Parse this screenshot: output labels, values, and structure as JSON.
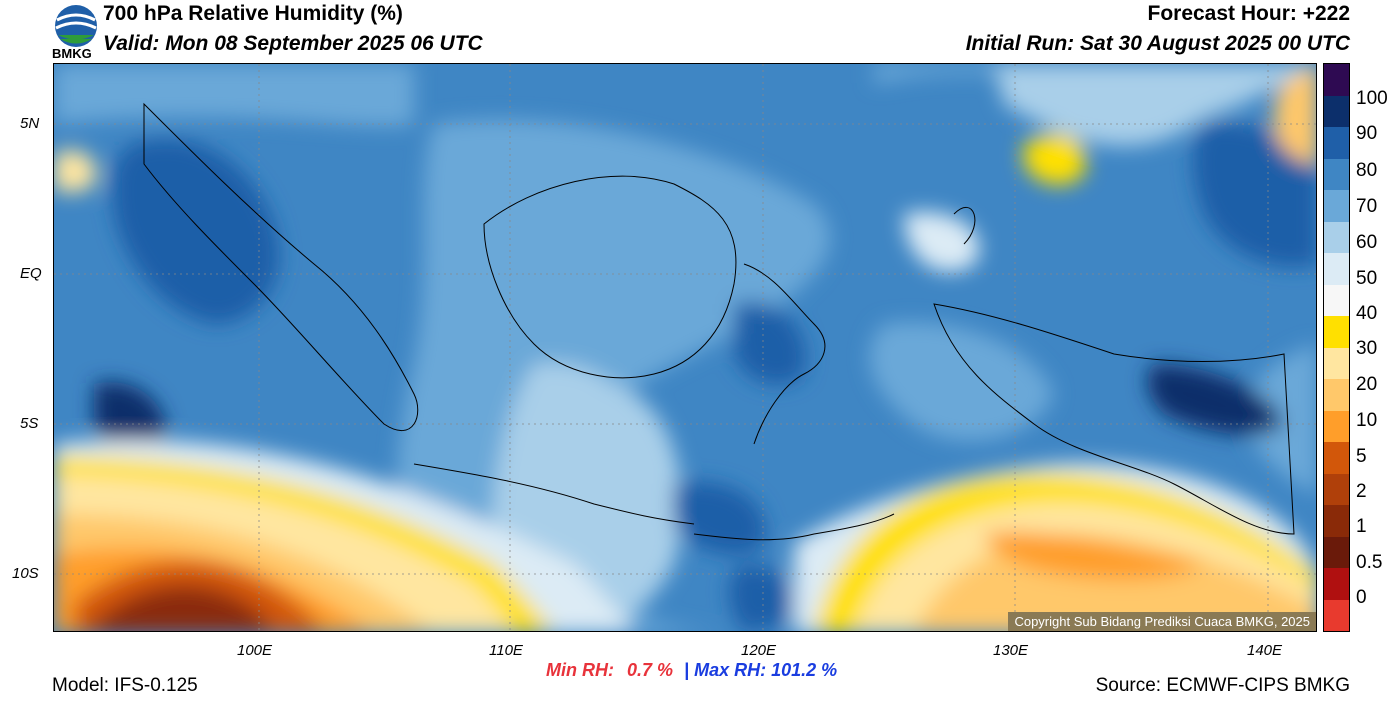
{
  "header": {
    "logo_text": "BMKG",
    "title": "700 hPa Relative Humidity (%)",
    "valid": "Valid: Mon 08 September 2025 06 UTC",
    "forecast_hour": "Forecast Hour: +222",
    "initial_run": "Initial Run: Sat 30 August 2025 00 UTC"
  },
  "axes": {
    "lat_ticks": [
      "5N",
      "EQ",
      "5S",
      "10S"
    ],
    "lon_ticks": [
      "100E",
      "110E",
      "120E",
      "130E",
      "140E"
    ]
  },
  "colorbar": {
    "labels": [
      "100",
      "90",
      "80",
      "70",
      "60",
      "50",
      "40",
      "30",
      "20",
      "10",
      "5",
      "2",
      "1",
      "0.5",
      "0"
    ],
    "colors": [
      "#2e0a52",
      "#0c2f6b",
      "#1f5fa8",
      "#3f86c4",
      "#6aa8d8",
      "#a9cfe9",
      "#dcebf5",
      "#f7f7f7",
      "#ffe000",
      "#ffe6a0",
      "#ffc86a",
      "#ff9e2a",
      "#d2570a",
      "#b0400a",
      "#8a2a08",
      "#6a1a0a",
      "#b01010",
      "#e83a2e"
    ]
  },
  "footer": {
    "model": "Model: IFS-0.125",
    "min_rh_label": "Min RH:",
    "min_rh_value": "0.7 %",
    "separator": "|",
    "max_rh": "Max RH: 101.2 %",
    "source": "Source: ECMWF-CIPS BMKG",
    "copyright": "Copyright Sub Bidang Prediksi Cuaca BMKG, 2025"
  },
  "colors": {
    "min_rh": "#e8333b",
    "max_rh": "#1a3de0"
  }
}
